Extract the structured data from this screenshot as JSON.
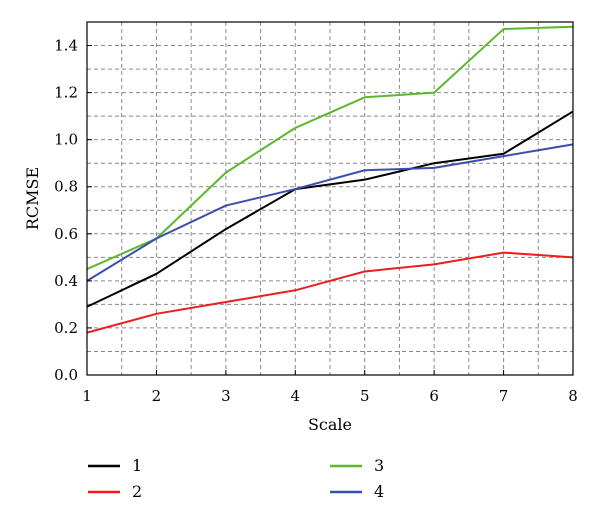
{
  "chart_data": {
    "type": "line",
    "xlabel": "Scale",
    "ylabel": "RCMSE",
    "xlim": [
      1,
      8
    ],
    "ylim": [
      0.0,
      1.5
    ],
    "xticks": [
      "1",
      "2",
      "3",
      "4",
      "5",
      "6",
      "7",
      "8"
    ],
    "yticks": [
      "0.0",
      "0.2",
      "0.4",
      "0.6",
      "0.8",
      "1.0",
      "1.2",
      "1.4"
    ],
    "grid": true,
    "legend_placement": "bottom",
    "x": [
      1,
      2,
      3,
      4,
      5,
      6,
      7,
      8
    ],
    "series": [
      {
        "name": "1",
        "color": "#000000",
        "values": [
          0.29,
          0.43,
          0.62,
          0.79,
          0.83,
          0.9,
          0.94,
          1.12
        ]
      },
      {
        "name": "2",
        "color": "#ee1c1c",
        "values": [
          0.18,
          0.26,
          0.31,
          0.36,
          0.44,
          0.47,
          0.52,
          0.5
        ]
      },
      {
        "name": "3",
        "color": "#5cb82e",
        "values": [
          0.45,
          0.58,
          0.86,
          1.05,
          1.18,
          1.2,
          1.47,
          1.48
        ]
      },
      {
        "name": "4",
        "color": "#3a4fad",
        "values": [
          0.4,
          0.58,
          0.72,
          0.79,
          0.87,
          0.88,
          0.93,
          0.98
        ]
      }
    ]
  }
}
